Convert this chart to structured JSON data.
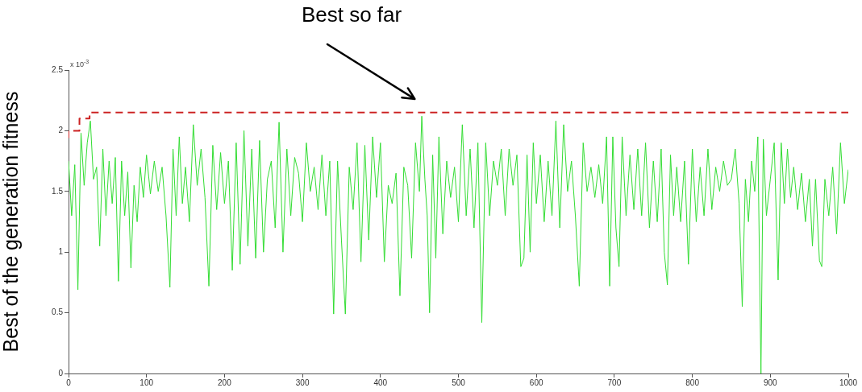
{
  "chart_data": {
    "type": "line",
    "ylabel": "Best of the generation fitness",
    "annotations": [
      "Best so far",
      "x 10$^{-3}$"
    ],
    "xlim": [
      0,
      1000
    ],
    "xticks": [
      0,
      100,
      200,
      300,
      400,
      500,
      600,
      700,
      800,
      900,
      1000
    ],
    "ylim": [
      0,
      2.5
    ],
    "yticks": [
      0,
      0.5,
      1,
      1.5,
      2,
      2.5
    ],
    "grid": false,
    "legend": false,
    "marker": "none",
    "series": [
      {
        "color": "#33dd33",
        "line_style": "solid",
        "x": [
          0,
          4,
          8,
          12,
          16,
          20,
          24,
          28,
          32,
          36,
          40,
          44,
          48,
          52,
          56,
          60,
          64,
          68,
          72,
          76,
          80,
          84,
          88,
          92,
          96,
          100,
          105,
          110,
          115,
          120,
          125,
          130,
          134,
          138,
          142,
          146,
          150,
          155,
          160,
          165,
          170,
          175,
          180,
          185,
          190,
          195,
          200,
          205,
          210,
          215,
          220,
          225,
          230,
          235,
          240,
          245,
          250,
          255,
          260,
          265,
          270,
          275,
          280,
          285,
          290,
          295,
          300,
          305,
          310,
          315,
          320,
          325,
          330,
          335,
          340,
          345,
          350,
          355,
          360,
          365,
          370,
          375,
          380,
          385,
          390,
          395,
          400,
          405,
          410,
          415,
          420,
          425,
          430,
          435,
          440,
          445,
          450,
          453,
          457,
          460,
          463,
          467,
          471,
          475,
          480,
          485,
          490,
          495,
          500,
          505,
          510,
          515,
          520,
          525,
          530,
          535,
          540,
          545,
          550,
          555,
          560,
          565,
          570,
          575,
          580,
          584,
          588,
          592,
          596,
          600,
          605,
          610,
          615,
          620,
          625,
          630,
          635,
          640,
          645,
          650,
          655,
          660,
          665,
          670,
          675,
          680,
          685,
          690,
          694,
          698,
          702,
          706,
          710,
          715,
          720,
          725,
          730,
          735,
          740,
          745,
          750,
          755,
          760,
          764,
          768,
          772,
          776,
          780,
          785,
          790,
          795,
          800,
          805,
          810,
          815,
          820,
          825,
          830,
          835,
          840,
          845,
          850,
          855,
          860,
          864,
          868,
          872,
          876,
          880,
          884,
          888,
          891,
          895,
          900,
          905,
          910,
          914,
          918,
          922,
          926,
          930,
          935,
          940,
          945,
          950,
          954,
          958,
          963,
          966,
          970,
          975,
          980,
          985,
          990,
          995,
          1000
        ],
        "values": [
          1.75,
          1.3,
          1.72,
          0.69,
          1.98,
          1.55,
          1.9,
          2.08,
          1.6,
          1.7,
          1.05,
          1.85,
          1.3,
          1.75,
          1.4,
          1.78,
          0.76,
          1.75,
          1.3,
          1.66,
          0.87,
          1.55,
          1.25,
          1.7,
          1.45,
          1.8,
          1.48,
          1.75,
          1.5,
          1.7,
          1.3,
          0.71,
          1.85,
          1.3,
          1.95,
          1.4,
          1.7,
          1.25,
          2.05,
          1.55,
          1.85,
          1.45,
          0.72,
          1.88,
          1.35,
          1.82,
          1.4,
          1.75,
          0.85,
          1.9,
          0.9,
          2.0,
          1.05,
          1.85,
          0.95,
          1.92,
          1.0,
          1.6,
          1.75,
          1.2,
          2.07,
          1.0,
          1.85,
          1.3,
          1.78,
          1.65,
          1.25,
          1.9,
          1.5,
          1.7,
          1.35,
          1.8,
          1.3,
          1.75,
          0.49,
          1.75,
          1.1,
          0.49,
          1.7,
          1.35,
          1.9,
          0.92,
          1.88,
          1.1,
          1.95,
          1.45,
          1.9,
          0.92,
          1.55,
          1.4,
          1.65,
          0.64,
          1.7,
          1.55,
          0.95,
          1.9,
          1.5,
          2.12,
          1.6,
          1.3,
          0.5,
          1.8,
          0.95,
          1.95,
          1.15,
          1.75,
          1.45,
          1.7,
          1.25,
          2.05,
          1.3,
          1.85,
          1.2,
          1.9,
          0.42,
          1.9,
          1.3,
          1.75,
          1.55,
          1.85,
          1.3,
          1.85,
          1.55,
          1.8,
          0.88,
          0.95,
          1.8,
          1.0,
          1.9,
          1.4,
          1.8,
          1.25,
          1.75,
          1.3,
          2.08,
          1.2,
          2.05,
          1.5,
          1.75,
          1.3,
          0.72,
          1.9,
          1.5,
          1.7,
          1.45,
          1.72,
          1.4,
          1.95,
          0.72,
          1.95,
          1.2,
          0.88,
          1.95,
          1.3,
          1.8,
          1.35,
          1.85,
          1.3,
          1.9,
          1.2,
          1.75,
          1.25,
          1.85,
          1.0,
          0.73,
          1.8,
          1.3,
          1.7,
          1.25,
          1.75,
          0.9,
          1.85,
          1.25,
          1.7,
          1.3,
          1.85,
          1.35,
          1.7,
          1.5,
          1.75,
          1.55,
          1.6,
          1.85,
          1.4,
          0.55,
          1.6,
          1.25,
          1.75,
          1.5,
          1.95,
          0.0,
          1.93,
          1.3,
          1.6,
          1.9,
          0.77,
          1.9,
          1.4,
          1.85,
          1.45,
          1.7,
          1.35,
          1.65,
          1.25,
          1.6,
          1.05,
          1.6,
          0.93,
          0.88,
          1.6,
          1.3,
          1.7,
          1.15,
          1.9,
          1.4,
          1.68
        ]
      },
      {
        "type": "step",
        "color": "#cc2222",
        "line_style": "dashed",
        "x": [
          0,
          14,
          27,
          452,
          1000
        ],
        "values": [
          1.94,
          2.0,
          2.1,
          2.15,
          2.15
        ]
      }
    ]
  }
}
